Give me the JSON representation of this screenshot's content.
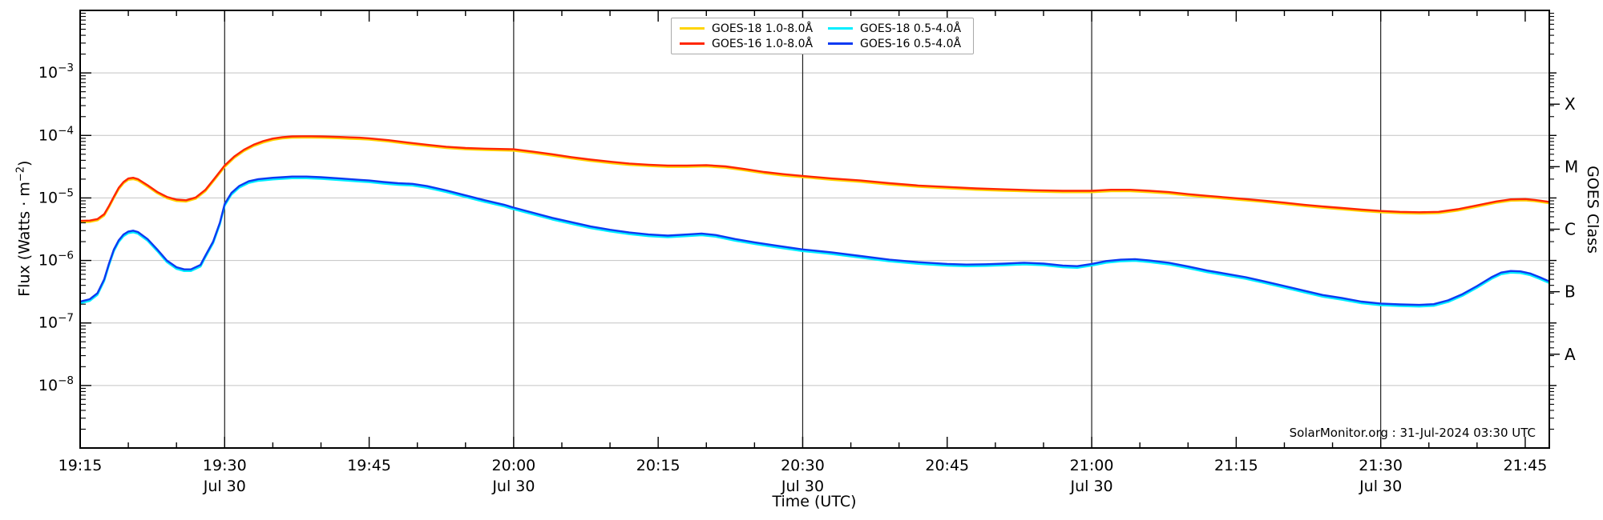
{
  "figure": {
    "footer_credit": "SolarMonitor.org : 31-Jul-2024 03:30 UTC"
  },
  "axes": {
    "x": {
      "label": "Time (UTC)",
      "range_minutes": [
        0,
        152.5
      ],
      "start_time": "19:15",
      "major_ticks": [
        {
          "t": 0,
          "label": "19:15"
        },
        {
          "t": 15,
          "label": "19:30"
        },
        {
          "t": 30,
          "label": "19:45"
        },
        {
          "t": 45,
          "label": "20:00"
        },
        {
          "t": 60,
          "label": "20:15"
        },
        {
          "t": 75,
          "label": "20:30"
        },
        {
          "t": 90,
          "label": "20:45"
        },
        {
          "t": 105,
          "label": "21:00"
        },
        {
          "t": 120,
          "label": "21:15"
        },
        {
          "t": 135,
          "label": "21:30"
        },
        {
          "t": 150,
          "label": "21:45"
        }
      ],
      "day_label": "Jul 30",
      "day_tick_t": [
        15,
        45,
        75,
        105,
        135
      ],
      "grid_t": [
        15,
        45,
        75,
        105,
        135
      ],
      "minor_step": 5
    },
    "y": {
      "label_prefix": "Flux (Watts · m",
      "label_sup": "−2",
      "label_suffix": ")",
      "log_range_exp": [
        -9,
        -2
      ],
      "labeled_exp": [
        -3,
        -4,
        -5,
        -6,
        -7,
        -8
      ]
    },
    "y2": {
      "label": "GOES Class",
      "classes": [
        {
          "letter": "X",
          "log_center": -3.5
        },
        {
          "letter": "M",
          "log_center": -4.5
        },
        {
          "letter": "C",
          "log_center": -5.5
        },
        {
          "letter": "B",
          "log_center": -6.5
        },
        {
          "letter": "A",
          "log_center": -7.5
        }
      ]
    }
  },
  "legend": {
    "entries": [
      {
        "label": "GOES-18 1.0-8.0Å",
        "color": "#ffd400"
      },
      {
        "label": "GOES-16 1.0-8.0Å",
        "color": "#ff2600"
      },
      {
        "label": "GOES-18 0.5-4.0Å",
        "color": "#00eeff"
      },
      {
        "label": "GOES-16 0.5-4.0Å",
        "color": "#0c3af2"
      }
    ]
  },
  "colors": {
    "vgrid": "#1f1f1f",
    "hgrid": "#c3c3c3",
    "spine": "#000000"
  },
  "chart_data": {
    "type": "line",
    "title": "GOES X-ray flux",
    "xlabel": "Time (UTC)",
    "ylabel": "Flux (Watts · m^-2)",
    "x_unit": "minutes after 19:15 UT, Jul 30",
    "y_scale": "log",
    "ylim": [
      1e-09,
      0.01
    ],
    "series": [
      {
        "name": "GOES-18 1.0-8.0Å",
        "color": "#ffd400",
        "points_from": "GOES-16 1.0-8.0Å",
        "scale": 0.95
      },
      {
        "name": "GOES-18 0.5-4.0Å",
        "color": "#00eeff",
        "points_from": "GOES-16 0.5-4.0Å",
        "scale": 0.94
      },
      {
        "name": "GOES-16 1.0-8.0Å",
        "color": "#ff2600",
        "points": [
          [
            0,
            4.3e-06
          ],
          [
            1,
            4.35e-06
          ],
          [
            1.8,
            4.6e-06
          ],
          [
            2.5,
            5.5e-06
          ],
          [
            3,
            7.5e-06
          ],
          [
            3.5,
            1.05e-05
          ],
          [
            4,
            1.45e-05
          ],
          [
            4.5,
            1.8e-05
          ],
          [
            5,
            2.05e-05
          ],
          [
            5.5,
            2.1e-05
          ],
          [
            6,
            2e-05
          ],
          [
            7,
            1.6e-05
          ],
          [
            8,
            1.25e-05
          ],
          [
            9,
            1.04e-05
          ],
          [
            10,
            9.4e-06
          ],
          [
            11,
            9.2e-06
          ],
          [
            12,
            1.02e-05
          ],
          [
            13,
            1.35e-05
          ],
          [
            14,
            2.1e-05
          ],
          [
            15,
            3.3e-05
          ],
          [
            16,
            4.6e-05
          ],
          [
            17,
            5.9e-05
          ],
          [
            18,
            7.1e-05
          ],
          [
            19,
            8.1e-05
          ],
          [
            20,
            8.9e-05
          ],
          [
            21,
            9.4e-05
          ],
          [
            22,
            9.65e-05
          ],
          [
            23,
            9.7e-05
          ],
          [
            24,
            9.7e-05
          ],
          [
            25,
            9.65e-05
          ],
          [
            26,
            9.55e-05
          ],
          [
            27,
            9.45e-05
          ],
          [
            28,
            9.3e-05
          ],
          [
            29,
            9.2e-05
          ],
          [
            30,
            9e-05
          ],
          [
            32,
            8.4e-05
          ],
          [
            34,
            7.7e-05
          ],
          [
            36,
            7.1e-05
          ],
          [
            38,
            6.6e-05
          ],
          [
            40,
            6.3e-05
          ],
          [
            42,
            6.15e-05
          ],
          [
            45,
            6e-05
          ],
          [
            47,
            5.5e-05
          ],
          [
            49,
            5e-05
          ],
          [
            51,
            4.5e-05
          ],
          [
            53,
            4.1e-05
          ],
          [
            55,
            3.8e-05
          ],
          [
            57,
            3.55e-05
          ],
          [
            59,
            3.4e-05
          ],
          [
            61,
            3.3e-05
          ],
          [
            63,
            3.3e-05
          ],
          [
            65,
            3.35e-05
          ],
          [
            67,
            3.2e-05
          ],
          [
            69,
            2.9e-05
          ],
          [
            71,
            2.6e-05
          ],
          [
            73,
            2.4e-05
          ],
          [
            75,
            2.25e-05
          ],
          [
            78,
            2.05e-05
          ],
          [
            81,
            1.9e-05
          ],
          [
            84,
            1.72e-05
          ],
          [
            87,
            1.58e-05
          ],
          [
            90,
            1.5e-05
          ],
          [
            93,
            1.42e-05
          ],
          [
            96,
            1.37e-05
          ],
          [
            99,
            1.33e-05
          ],
          [
            102,
            1.3e-05
          ],
          [
            105,
            1.3e-05
          ],
          [
            107,
            1.35e-05
          ],
          [
            109,
            1.35e-05
          ],
          [
            111,
            1.3e-05
          ],
          [
            113,
            1.24e-05
          ],
          [
            115,
            1.15e-05
          ],
          [
            117,
            1.08e-05
          ],
          [
            119,
            1.02e-05
          ],
          [
            121,
            9.6e-06
          ],
          [
            123,
            9e-06
          ],
          [
            125,
            8.4e-06
          ],
          [
            127,
            7.8e-06
          ],
          [
            129,
            7.3e-06
          ],
          [
            131,
            6.9e-06
          ],
          [
            133,
            6.5e-06
          ],
          [
            135,
            6.2e-06
          ],
          [
            137,
            6e-06
          ],
          [
            139,
            5.9e-06
          ],
          [
            141,
            6e-06
          ],
          [
            143,
            6.6e-06
          ],
          [
            145,
            7.6e-06
          ],
          [
            147,
            8.8e-06
          ],
          [
            148.5,
            9.5e-06
          ],
          [
            150,
            9.6e-06
          ],
          [
            151,
            9.3e-06
          ],
          [
            152.4,
            8.7e-06
          ]
        ]
      },
      {
        "name": "GOES-16 0.5-4.0Å",
        "color": "#0c3af2",
        "points": [
          [
            0,
            2.2e-07
          ],
          [
            1,
            2.4e-07
          ],
          [
            1.8,
            3e-07
          ],
          [
            2.5,
            5e-07
          ],
          [
            3,
            9e-07
          ],
          [
            3.5,
            1.5e-06
          ],
          [
            4,
            2.1e-06
          ],
          [
            4.5,
            2.6e-06
          ],
          [
            5,
            2.9e-06
          ],
          [
            5.5,
            3e-06
          ],
          [
            6,
            2.85e-06
          ],
          [
            7,
            2.2e-06
          ],
          [
            8,
            1.5e-06
          ],
          [
            9,
            1e-06
          ],
          [
            10,
            7.8e-07
          ],
          [
            10.8,
            7.2e-07
          ],
          [
            11.5,
            7.2e-07
          ],
          [
            12.5,
            8.5e-07
          ],
          [
            13,
            1.2e-06
          ],
          [
            13.8,
            2e-06
          ],
          [
            14.5,
            4e-06
          ],
          [
            15,
            8e-06
          ],
          [
            15.7,
            1.2e-05
          ],
          [
            16.5,
            1.55e-05
          ],
          [
            17.5,
            1.85e-05
          ],
          [
            18.5,
            2e-05
          ],
          [
            20,
            2.1e-05
          ],
          [
            21,
            2.15e-05
          ],
          [
            22,
            2.2e-05
          ],
          [
            23.5,
            2.2e-05
          ],
          [
            25,
            2.15e-05
          ],
          [
            27,
            2.05e-05
          ],
          [
            29,
            1.95e-05
          ],
          [
            30,
            1.9e-05
          ],
          [
            31.5,
            1.8e-05
          ],
          [
            33,
            1.72e-05
          ],
          [
            34.5,
            1.68e-05
          ],
          [
            36,
            1.55e-05
          ],
          [
            38,
            1.32e-05
          ],
          [
            40,
            1.1e-05
          ],
          [
            42,
            9.2e-06
          ],
          [
            44,
            7.8e-06
          ],
          [
            45,
            7e-06
          ],
          [
            47,
            5.8e-06
          ],
          [
            49,
            4.8e-06
          ],
          [
            51,
            4.1e-06
          ],
          [
            53,
            3.5e-06
          ],
          [
            55,
            3.1e-06
          ],
          [
            57,
            2.8e-06
          ],
          [
            59,
            2.6e-06
          ],
          [
            61,
            2.5e-06
          ],
          [
            63,
            2.6e-06
          ],
          [
            64.5,
            2.7e-06
          ],
          [
            66,
            2.55e-06
          ],
          [
            68,
            2.2e-06
          ],
          [
            70,
            1.95e-06
          ],
          [
            72,
            1.75e-06
          ],
          [
            75,
            1.5e-06
          ],
          [
            78,
            1.35e-06
          ],
          [
            81,
            1.18e-06
          ],
          [
            84,
            1.03e-06
          ],
          [
            87,
            9.4e-07
          ],
          [
            90,
            8.8e-07
          ],
          [
            92,
            8.6e-07
          ],
          [
            94,
            8.7e-07
          ],
          [
            96,
            8.9e-07
          ],
          [
            98,
            9.2e-07
          ],
          [
            100,
            8.9e-07
          ],
          [
            102,
            8.3e-07
          ],
          [
            103.5,
            8.1e-07
          ],
          [
            105,
            8.8e-07
          ],
          [
            106.5,
            9.8e-07
          ],
          [
            108,
            1.03e-06
          ],
          [
            109.5,
            1.05e-06
          ],
          [
            111,
            1e-06
          ],
          [
            113,
            9.2e-07
          ],
          [
            115,
            8e-07
          ],
          [
            117,
            6.9e-07
          ],
          [
            119,
            6.1e-07
          ],
          [
            121,
            5.4e-07
          ],
          [
            123,
            4.6e-07
          ],
          [
            125,
            3.9e-07
          ],
          [
            127,
            3.3e-07
          ],
          [
            129,
            2.8e-07
          ],
          [
            131,
            2.5e-07
          ],
          [
            133,
            2.2e-07
          ],
          [
            135,
            2.05e-07
          ],
          [
            137,
            1.98e-07
          ],
          [
            139,
            1.95e-07
          ],
          [
            140.5,
            2e-07
          ],
          [
            142,
            2.3e-07
          ],
          [
            143.5,
            2.9e-07
          ],
          [
            145,
            3.9e-07
          ],
          [
            146.5,
            5.4e-07
          ],
          [
            147.5,
            6.4e-07
          ],
          [
            148.5,
            6.8e-07
          ],
          [
            149.5,
            6.7e-07
          ],
          [
            150.5,
            6.2e-07
          ],
          [
            151.5,
            5.4e-07
          ],
          [
            152.4,
            4.7e-07
          ]
        ]
      }
    ]
  }
}
